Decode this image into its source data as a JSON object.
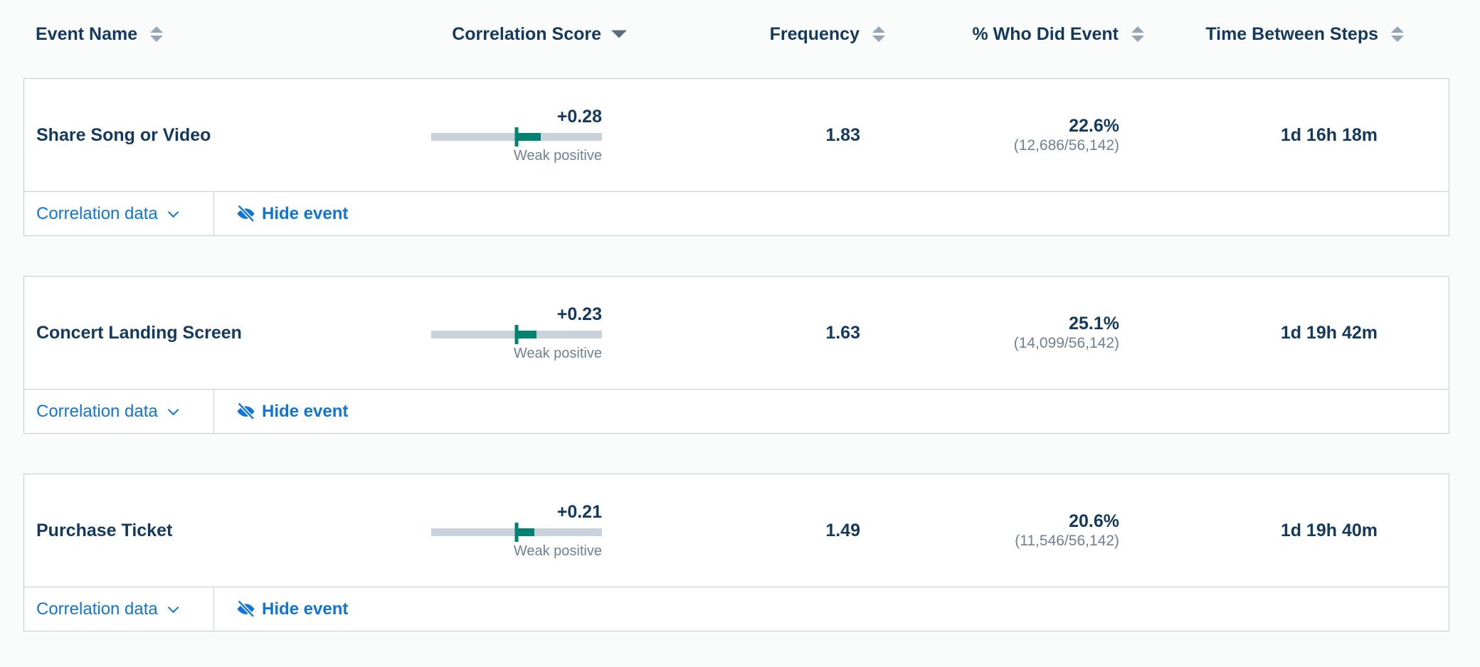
{
  "table": {
    "columns": [
      {
        "label": "Event Name",
        "sort": "both"
      },
      {
        "label": "Correlation Score",
        "sort": "desc"
      },
      {
        "label": "Frequency",
        "sort": "both"
      },
      {
        "label": "% Who Did Event",
        "sort": "both"
      },
      {
        "label": "Time Between Steps",
        "sort": "both"
      }
    ],
    "rows": [
      {
        "event_name": "Share Song or Video",
        "correlation": {
          "score_label": "+0.28",
          "score": 0.28,
          "strength": "Weak positive"
        },
        "frequency": "1.83",
        "pct_who_did": "22.6%",
        "pct_fraction": "(12,686/56,142)",
        "time_between": "1d 16h 18m"
      },
      {
        "event_name": "Concert Landing Screen",
        "correlation": {
          "score_label": "+0.23",
          "score": 0.23,
          "strength": "Weak positive"
        },
        "frequency": "1.63",
        "pct_who_did": "25.1%",
        "pct_fraction": "(14,099/56,142)",
        "time_between": "1d 19h 42m"
      },
      {
        "event_name": "Purchase Ticket",
        "correlation": {
          "score_label": "+0.21",
          "score": 0.21,
          "strength": "Weak positive"
        },
        "frequency": "1.49",
        "pct_who_did": "20.6%",
        "pct_fraction": "(11,546/56,142)",
        "time_between": "1d 19h 40m"
      }
    ]
  },
  "row_actions": {
    "correlation_data_label": "Correlation data",
    "hide_event_label": "Hide event"
  },
  "icons": {
    "sort_both": "sort-arrows-icon",
    "sort_desc": "sort-desc-icon",
    "chevron": "chevron-down-icon",
    "hide": "eye-slash-icon"
  },
  "colors": {
    "accent_blue": "#0f76d7",
    "teal": "#008272",
    "navy_text": "#14395e",
    "secondary_text": "#6f8095",
    "bar_track": "#c9d2da",
    "card_border": "#c5ccd4",
    "page_background": "#fafbfb"
  }
}
